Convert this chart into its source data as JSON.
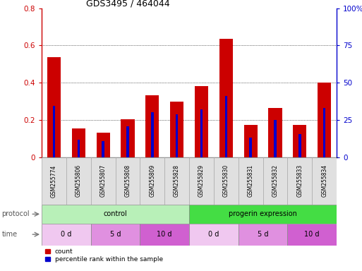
{
  "title": "GDS3495 / 464044",
  "samples": [
    "GSM255774",
    "GSM255806",
    "GSM255807",
    "GSM255808",
    "GSM255809",
    "GSM255828",
    "GSM255829",
    "GSM255830",
    "GSM255831",
    "GSM255832",
    "GSM255833",
    "GSM255834"
  ],
  "count_values": [
    0.535,
    0.155,
    0.13,
    0.205,
    0.333,
    0.3,
    0.38,
    0.635,
    0.175,
    0.265,
    0.175,
    0.4
  ],
  "percentile_values": [
    0.275,
    0.095,
    0.085,
    0.165,
    0.24,
    0.23,
    0.255,
    0.33,
    0.105,
    0.2,
    0.125,
    0.265
  ],
  "ylim_left": [
    0,
    0.8
  ],
  "ylim_right": [
    0,
    100
  ],
  "yticks_left": [
    0,
    0.2,
    0.4,
    0.6,
    0.8
  ],
  "yticks_right": [
    0,
    25,
    50,
    75,
    100
  ],
  "ytick_labels_right": [
    "0",
    "25",
    "50",
    "75",
    "100%"
  ],
  "left_color": "#cc0000",
  "right_color": "#0000cc",
  "bar_color_red": "#cc0000",
  "bar_color_blue": "#0000cc",
  "protocol_groups": [
    {
      "label": "control",
      "start": 0,
      "end": 6,
      "color": "#b8f0b8"
    },
    {
      "label": "progerin expression",
      "start": 6,
      "end": 12,
      "color": "#44dd44"
    }
  ],
  "time_groups": [
    {
      "label": "0 d",
      "start": 0,
      "end": 2,
      "color": "#f0c8f0"
    },
    {
      "label": "5 d",
      "start": 2,
      "end": 4,
      "color": "#e090e0"
    },
    {
      "label": "10 d",
      "start": 4,
      "end": 6,
      "color": "#d060d0"
    },
    {
      "label": "0 d",
      "start": 6,
      "end": 8,
      "color": "#f0c8f0"
    },
    {
      "label": "5 d",
      "start": 8,
      "end": 10,
      "color": "#e090e0"
    },
    {
      "label": "10 d",
      "start": 10,
      "end": 12,
      "color": "#d060d0"
    }
  ],
  "legend_count_label": "count",
  "legend_pct_label": "percentile rank within the sample",
  "bg_color": "#ffffff",
  "plot_bg": "#ffffff"
}
